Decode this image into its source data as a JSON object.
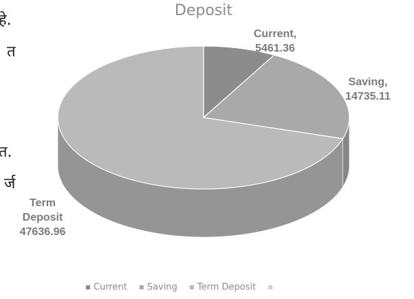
{
  "side_text": [
    "हे.",
    "त",
    "त.",
    "र्ज"
  ],
  "chart_data": {
    "type": "pie",
    "title": "Deposit",
    "categories": [
      "Current",
      "Saving",
      "Term Deposit"
    ],
    "label_names": [
      "Current,",
      "Saving,",
      "Term Deposit"
    ],
    "values": [
      5461.36,
      14735.11,
      47636.96
    ],
    "colors": [
      "#8c8c8c",
      "#a9a9a9",
      "#bababa"
    ],
    "legend": "bottom"
  }
}
